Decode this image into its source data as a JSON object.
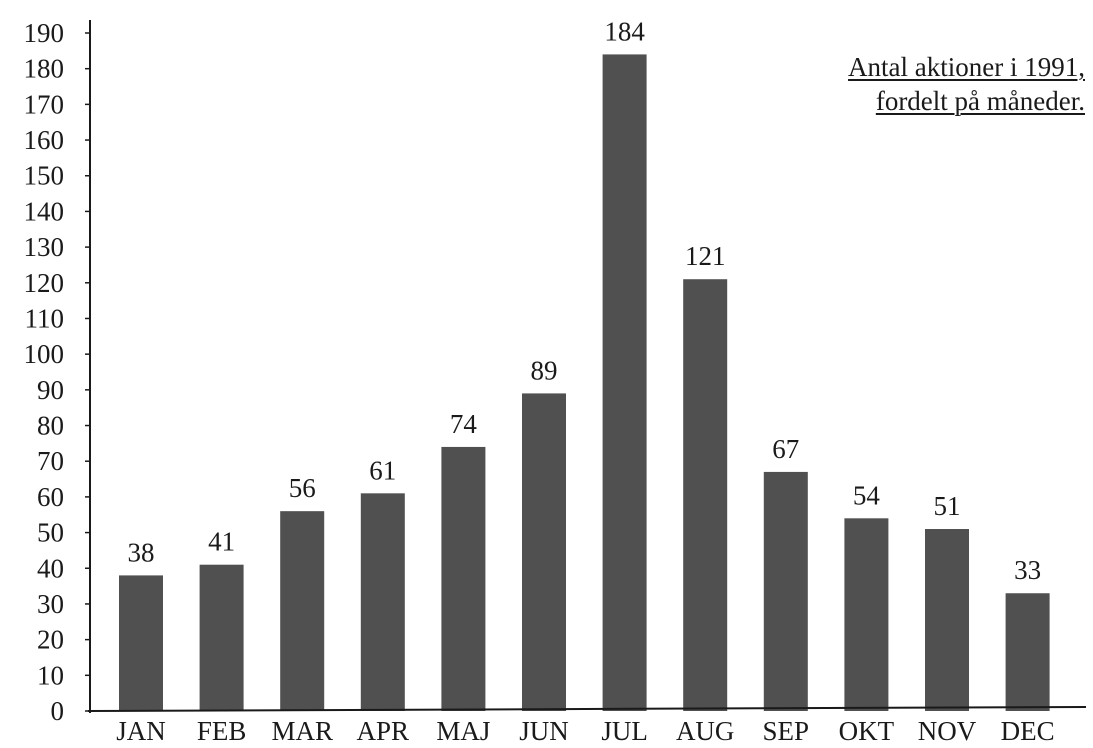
{
  "chart_data": {
    "type": "bar",
    "title_lines": [
      "Antal aktioner i 1991,",
      "fordelt på måneder."
    ],
    "xlabel": "",
    "ylabel": "",
    "categories": [
      "JAN",
      "FEB",
      "MAR",
      "APR",
      "MAJ",
      "JUN",
      "JUL",
      "AUG",
      "SEP",
      "OKT",
      "NOV",
      "DEC"
    ],
    "values": [
      38,
      41,
      56,
      61,
      74,
      89,
      184,
      121,
      67,
      54,
      51,
      33
    ],
    "data_labels": [
      "38",
      "41",
      "56",
      "61",
      "74",
      "89",
      "184",
      "121",
      "67",
      "54",
      "51",
      "33"
    ],
    "ylim": [
      0,
      190
    ],
    "yticks": [
      0,
      10,
      20,
      30,
      40,
      50,
      60,
      70,
      80,
      90,
      100,
      110,
      120,
      130,
      140,
      150,
      160,
      170,
      180,
      190
    ],
    "grid": false,
    "legend": "none",
    "bar_color": "#505050",
    "axis_color": "#1a1a1a"
  }
}
